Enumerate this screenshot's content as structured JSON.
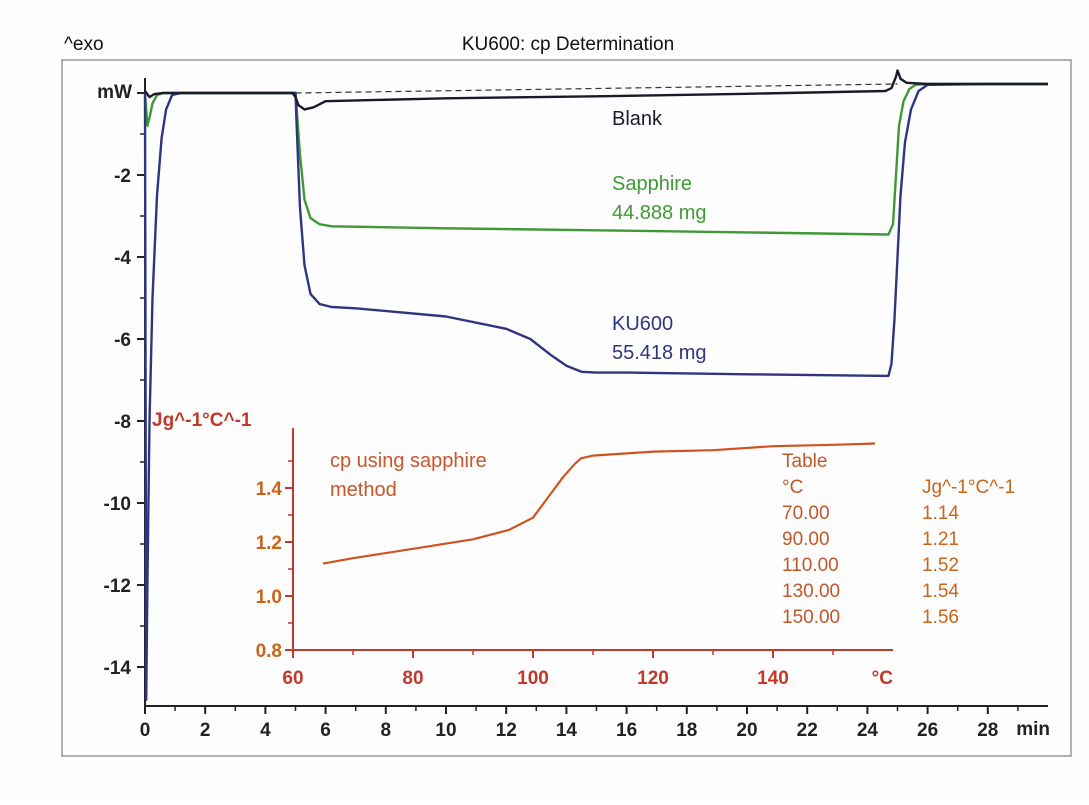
{
  "chart_data": [
    {
      "type": "line",
      "title": "KU600: cp Determination",
      "corner_label": "^exo",
      "ylabel": "mW",
      "xunit": "min",
      "xlim": [
        0,
        30
      ],
      "ylim": [
        -15,
        0.3
      ],
      "x_ticks": [
        0,
        2,
        4,
        6,
        8,
        10,
        12,
        14,
        16,
        18,
        20,
        22,
        24,
        26,
        28
      ],
      "x_tick_labels": [
        "0",
        "2",
        "4",
        "6",
        "8",
        "10",
        "12",
        "14",
        "16",
        "18",
        "20",
        "22",
        "24",
        "26",
        "28"
      ],
      "y_ticks": [
        -2,
        -4,
        -6,
        -8,
        -10,
        -12,
        -14
      ],
      "y_tick_labels": [
        "-2",
        "-4",
        "-6",
        "-8",
        "-10",
        "-12",
        "-14"
      ],
      "grid": false,
      "series": [
        {
          "name": "Blank",
          "color": "#1a1a2a",
          "x": [
            0,
            0.15,
            0.3,
            0.6,
            1.2,
            4.9,
            5.0,
            5.1,
            5.3,
            5.6,
            6.0,
            10,
            15,
            20,
            24.6,
            24.8,
            24.95,
            25.0,
            25.1,
            25.3,
            26,
            28,
            30
          ],
          "y": [
            0.05,
            -0.1,
            -0.03,
            0.0,
            0.0,
            0.0,
            -0.1,
            -0.3,
            -0.4,
            -0.35,
            -0.2,
            -0.13,
            -0.08,
            -0.02,
            0.05,
            0.12,
            0.4,
            0.55,
            0.35,
            0.25,
            0.22,
            0.22,
            0.22
          ]
        },
        {
          "name": "Sapphire",
          "label": "44.888 mg",
          "color": "#3f9a35",
          "x": [
            0,
            0.08,
            0.15,
            0.25,
            0.4,
            0.6,
            0.9,
            1.2,
            5.0,
            5.05,
            5.15,
            5.3,
            5.5,
            5.8,
            6.2,
            10,
            15,
            20,
            24.7,
            24.85,
            24.95,
            25.05,
            25.2,
            25.4,
            25.6,
            26,
            28,
            30
          ],
          "y": [
            0.0,
            -0.8,
            -0.6,
            -0.25,
            -0.05,
            0.0,
            0.0,
            0.0,
            0.0,
            -0.5,
            -1.5,
            -2.6,
            -3.05,
            -3.2,
            -3.25,
            -3.3,
            -3.35,
            -3.4,
            -3.45,
            -3.2,
            -2.0,
            -0.8,
            -0.2,
            0.1,
            0.2,
            0.22,
            0.22,
            0.22
          ]
        },
        {
          "name": "KU600",
          "label": "55.418 mg",
          "color": "#2f3580",
          "x": [
            0,
            0.04,
            0.08,
            0.15,
            0.25,
            0.4,
            0.55,
            0.7,
            0.9,
            1.2,
            5.0,
            5.05,
            5.15,
            5.3,
            5.5,
            5.8,
            6.2,
            7,
            10,
            12,
            12.8,
            13.5,
            14.0,
            14.5,
            15,
            16,
            20,
            24.7,
            24.8,
            24.9,
            25.0,
            25.1,
            25.25,
            25.45,
            25.7,
            26,
            28,
            30
          ],
          "y": [
            0.0,
            -14.8,
            -12,
            -8,
            -5,
            -2.5,
            -1.1,
            -0.4,
            -0.05,
            0.0,
            0.0,
            -1.0,
            -2.8,
            -4.2,
            -4.9,
            -5.15,
            -5.22,
            -5.25,
            -5.45,
            -5.75,
            -6.0,
            -6.4,
            -6.65,
            -6.8,
            -6.82,
            -6.82,
            -6.86,
            -6.9,
            -6.6,
            -5.5,
            -4.0,
            -2.5,
            -1.2,
            -0.4,
            0.05,
            0.2,
            0.22,
            0.22
          ]
        }
      ],
      "baseline": {
        "style": "dashed",
        "color": "#333333",
        "x": [
          5.0,
          25.0
        ],
        "y": [
          0.0,
          0.22
        ]
      }
    },
    {
      "type": "line",
      "title": "cp using sapphire method",
      "ylabel": "Jg^-1°C^-1",
      "xunit": "°C",
      "xlim": [
        60,
        160
      ],
      "ylim": [
        0.8,
        1.65
      ],
      "x_ticks": [
        60,
        80,
        100,
        120,
        140
      ],
      "x_tick_labels": [
        "60",
        "80",
        "100",
        "120",
        "140"
      ],
      "y_ticks": [
        0.8,
        1.0,
        1.2,
        1.4
      ],
      "y_tick_labels": [
        "0.8",
        "1.0",
        "1.2",
        "1.4"
      ],
      "grid": false,
      "series": [
        {
          "name": "cp",
          "color": "#d0531f",
          "x": [
            65,
            70,
            80,
            90,
            96,
            100,
            103,
            105,
            107,
            108,
            110,
            120,
            130,
            140,
            150,
            157
          ],
          "y": [
            1.12,
            1.14,
            1.175,
            1.21,
            1.245,
            1.29,
            1.38,
            1.44,
            1.49,
            1.51,
            1.52,
            1.535,
            1.54,
            1.555,
            1.56,
            1.565
          ]
        }
      ]
    },
    {
      "type": "table",
      "title": "Table",
      "columns": [
        "°C",
        "Jg^-1°C^-1"
      ],
      "rows": [
        [
          "70.00",
          "1.14"
        ],
        [
          "90.00",
          "1.21"
        ],
        [
          "110.00",
          "1.52"
        ],
        [
          "130.00",
          "1.54"
        ],
        [
          "150.00",
          "1.56"
        ]
      ]
    }
  ],
  "colors": {
    "axis": "#222222",
    "inset_axis": "#c0392b",
    "inset_tick_text": "#c8651b",
    "table_col1": "#c0582a",
    "table_col2": "#c8651b",
    "frame": "#888888"
  }
}
